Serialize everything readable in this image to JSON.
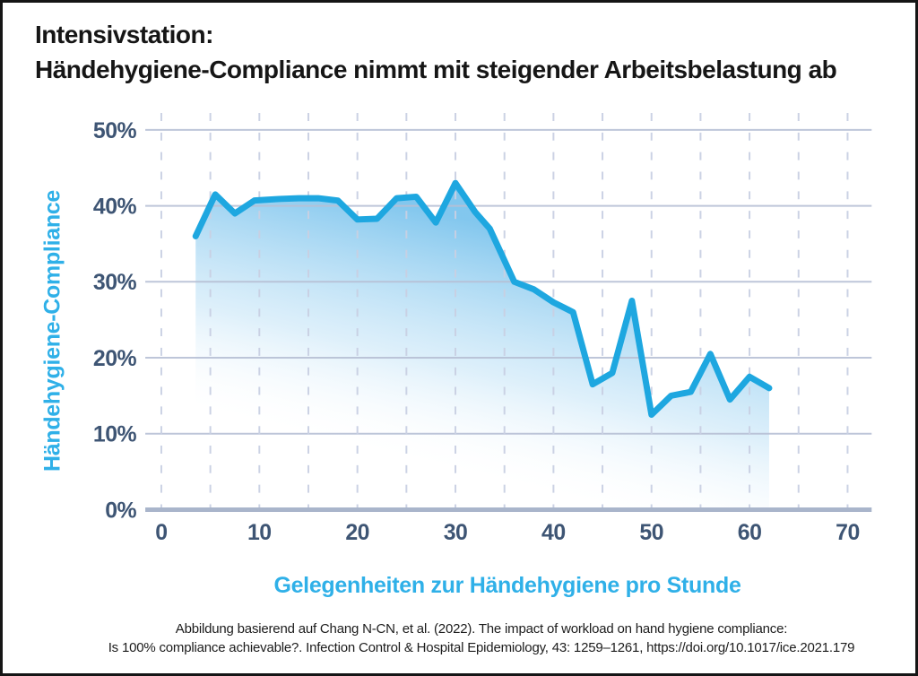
{
  "title": {
    "line1": "Intensivstation:",
    "line2": "Händehygiene-Compliance nimmt mit steigender Arbeitsbelastung ab"
  },
  "chart_data": {
    "type": "area",
    "title": "Intensivstation: Händehygiene-Compliance nimmt mit steigender Arbeitsbelastung ab",
    "xlabel": "Gelegenheiten zur Händehygiene pro Stunde",
    "ylabel": "Händehygiene-Compliance",
    "x_ticks": [
      0,
      10,
      20,
      30,
      40,
      50,
      60,
      70
    ],
    "y_ticks": [
      {
        "value": 0,
        "label": "0%"
      },
      {
        "value": 10,
        "label": "10%"
      },
      {
        "value": 20,
        "label": "20%"
      },
      {
        "value": 30,
        "label": "30%"
      },
      {
        "value": 40,
        "label": "40%"
      },
      {
        "value": 50,
        "label": "50%"
      }
    ],
    "xlim": [
      0,
      73
    ],
    "ylim": [
      0,
      52
    ],
    "grid": {
      "h_values": [
        10,
        20,
        30,
        40,
        50
      ],
      "v_step": 5,
      "v_max": 70,
      "grid_on": true
    },
    "legend": "none",
    "series": [
      {
        "name": "Händehygiene-Compliance (%)",
        "x": [
          3.5,
          5.5,
          7.5,
          9.5,
          12,
          14,
          16,
          18,
          20,
          22,
          24,
          26,
          28,
          30,
          32,
          33.5,
          36,
          38,
          40,
          42,
          44,
          46,
          48,
          50,
          52,
          54,
          56,
          58,
          60,
          62
        ],
        "y_percent": [
          36,
          41.5,
          39,
          40.7,
          40.9,
          41,
          41,
          40.7,
          38.2,
          38.3,
          41,
          41.2,
          37.8,
          43,
          39.2,
          37,
          30,
          29,
          27.3,
          26,
          16.5,
          18,
          27.5,
          12.5,
          15,
          15.5,
          20.5,
          14.5,
          17.5,
          16
        ]
      }
    ],
    "colors": {
      "line": "#1ea7e0",
      "fill_top": "#7cc4ed",
      "fill_mid": "#b5ddf5",
      "tick_labels": "#3e5574",
      "axis_titles": "#2fb0e8",
      "grid_solid": "#b7c0d5",
      "grid_dashed": "#c9d0e3",
      "baseline": "#a9b5cb"
    }
  },
  "citation": {
    "line1": "Abbildung basierend auf Chang N-CN, et al. (2022). The impact of workload on hand hygiene compliance:",
    "line2": "Is 100% compliance achievable?. Infection Control & Hospital Epidemiology, 43: 1259–1261, https://doi.org/10.1017/ice.2021.179"
  }
}
